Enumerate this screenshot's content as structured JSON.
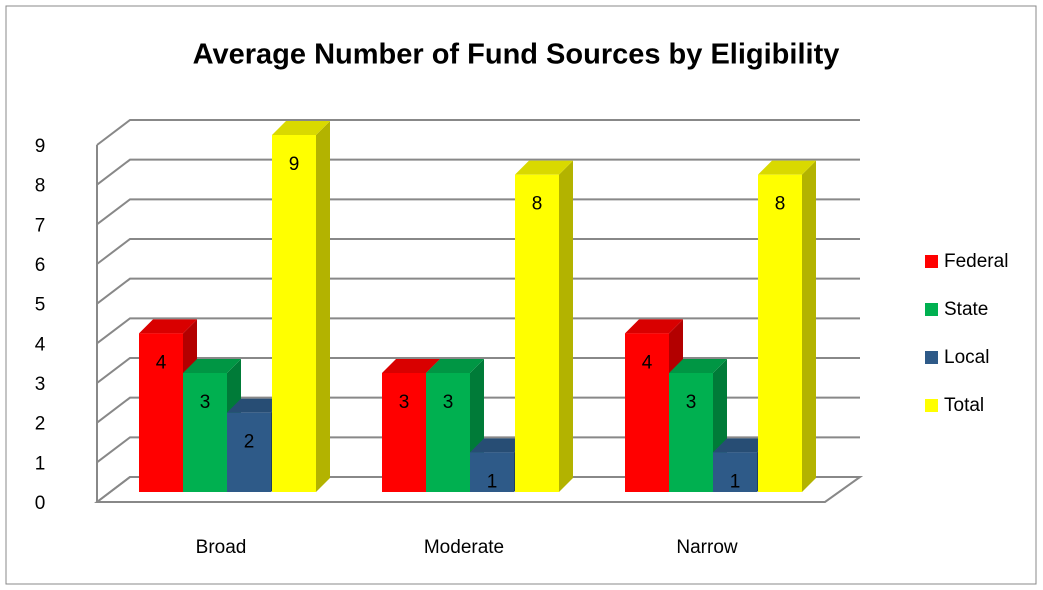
{
  "chart_data": {
    "type": "bar3d",
    "title": "Average Number of Fund Sources by Eligibility",
    "categories": [
      "Broad",
      "Moderate",
      "Narrow"
    ],
    "series": [
      {
        "name": "Federal",
        "color": "#ff0000",
        "values": [
          4,
          3,
          4
        ]
      },
      {
        "name": "State",
        "color": "#00b050",
        "values": [
          3,
          3,
          3
        ]
      },
      {
        "name": "Local",
        "color": "#2e5a88",
        "values": [
          2,
          1,
          1
        ]
      },
      {
        "name": "Total",
        "color": "#ffff00",
        "values": [
          9,
          8,
          8
        ]
      }
    ],
    "ylim": [
      0,
      9
    ],
    "yticks": [
      0,
      1,
      2,
      3,
      4,
      5,
      6,
      7,
      8,
      9
    ],
    "grid": true,
    "legend": "right"
  }
}
